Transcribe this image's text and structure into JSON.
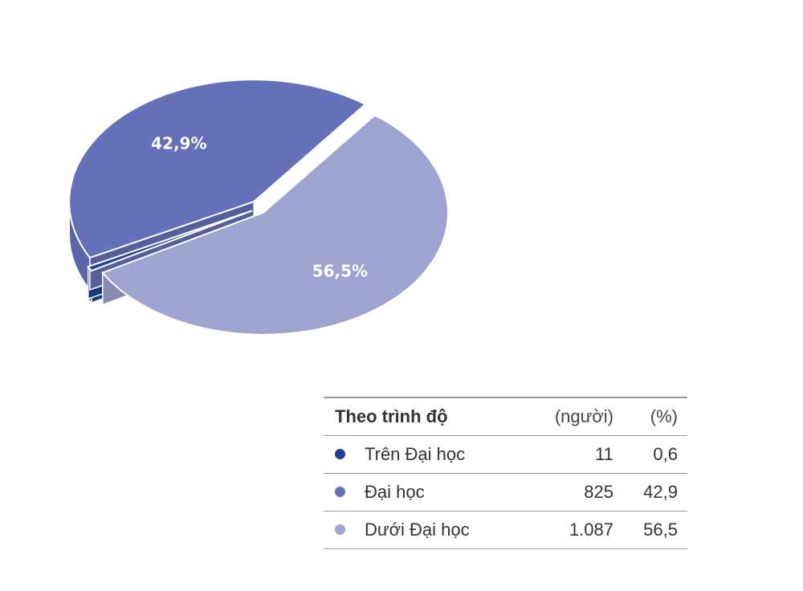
{
  "chart_data": {
    "type": "pie",
    "style": "3d-exploded",
    "slices": [
      {
        "name": "Trên Đại học",
        "count": "11",
        "percent": "0,6",
        "value": 0.6,
        "color": "#1f3f9a",
        "label": ""
      },
      {
        "name": "Đại học",
        "count": "825",
        "percent": "42,9",
        "value": 42.9,
        "color": "#6470b8",
        "label": "42,9%"
      },
      {
        "name": "Dưới Đại học",
        "count": "1.087",
        "percent": "56,5",
        "value": 56.5,
        "color": "#9ea3d1",
        "label": "56,5%"
      }
    ],
    "legend": {
      "title": "Theo trình độ",
      "unit_count": "(người)",
      "unit_percent": "(%)",
      "placement": "bottom-right"
    }
  }
}
